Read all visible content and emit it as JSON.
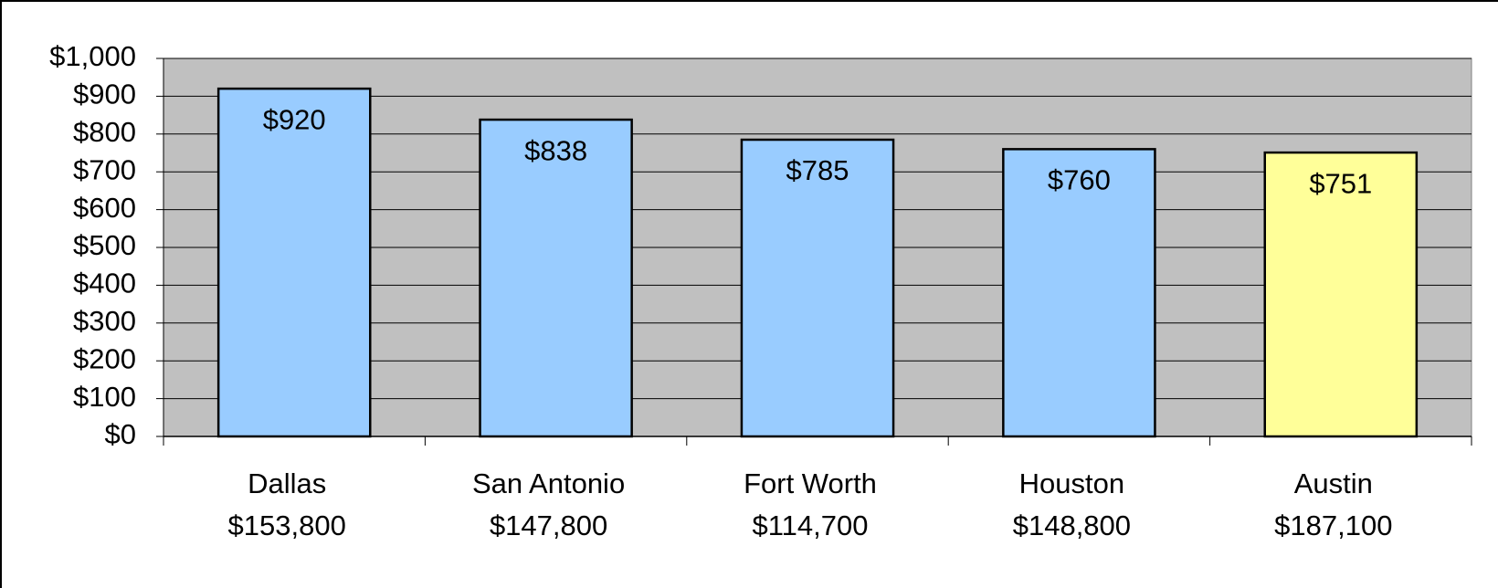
{
  "chart_data": {
    "type": "bar",
    "categories": [
      [
        "Dallas",
        "$153,800"
      ],
      [
        "San Antonio",
        "$147,800"
      ],
      [
        "Fort Worth",
        "$114,700"
      ],
      [
        "Houston",
        "$148,800"
      ],
      [
        "Austin",
        "$187,100"
      ]
    ],
    "values": [
      920,
      838,
      785,
      760,
      751
    ],
    "value_labels": [
      "$920",
      "$838",
      "$785",
      "$760",
      "$751"
    ],
    "colors": [
      "#99ccff",
      "#99ccff",
      "#99ccff",
      "#99ccff",
      "#ffff99"
    ],
    "ylim": [
      0,
      1000
    ],
    "yticks": [
      {
        "value": 0,
        "label": "$0"
      },
      {
        "value": 100,
        "label": "$100"
      },
      {
        "value": 200,
        "label": "$200"
      },
      {
        "value": 300,
        "label": "$300"
      },
      {
        "value": 400,
        "label": "$400"
      },
      {
        "value": 500,
        "label": "$500"
      },
      {
        "value": 600,
        "label": "$600"
      },
      {
        "value": 700,
        "label": "$700"
      },
      {
        "value": 800,
        "label": "$800"
      },
      {
        "value": 900,
        "label": "$900"
      },
      {
        "value": 1000,
        "label": "$1,000"
      }
    ],
    "grid": true
  }
}
